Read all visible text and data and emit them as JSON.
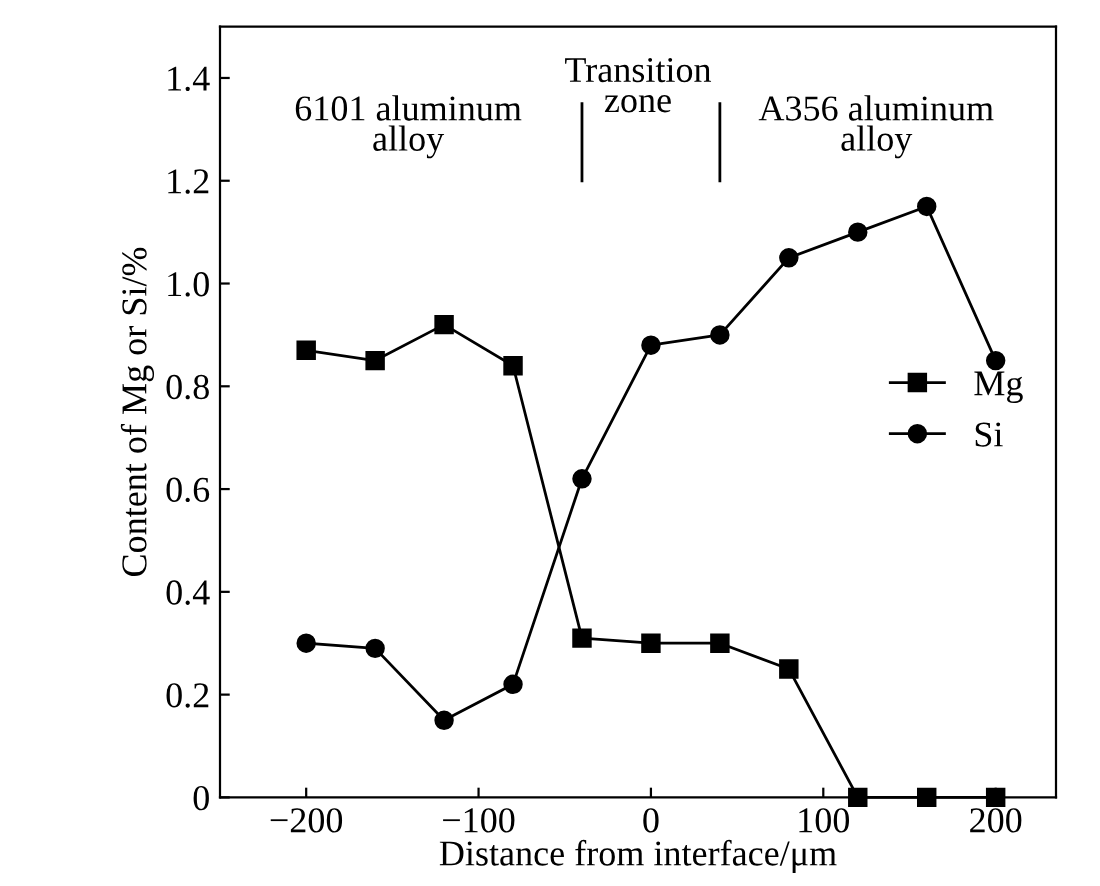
{
  "chart_data": {
    "type": "line",
    "xlabel": "Distance from interface/μm",
    "ylabel": "Content of Mg or Si/%",
    "x": [
      -200,
      -160,
      -120,
      -80,
      -40,
      0,
      40,
      80,
      120,
      160,
      200
    ],
    "series": [
      {
        "name": "Mg",
        "color": "#000000",
        "marker": "square",
        "values": [
          0.87,
          0.85,
          0.92,
          0.84,
          0.31,
          0.3,
          0.3,
          0.25,
          0.0,
          0.0,
          0.0
        ]
      },
      {
        "name": "Si",
        "color": "#000000",
        "marker": "circle",
        "values": [
          0.3,
          0.29,
          0.15,
          0.22,
          0.62,
          0.88,
          0.9,
          1.05,
          1.1,
          1.15,
          0.85
        ]
      }
    ],
    "xlim": [
      -250,
      235
    ],
    "ylim": [
      0,
      1.5
    ],
    "xticks": [
      {
        "value": -200,
        "label": "−200"
      },
      {
        "value": -100,
        "label": "−100"
      },
      0,
      100,
      200
    ],
    "yticks": [
      0,
      0.2,
      0.4,
      0.6,
      0.8,
      {
        "value": 1.0,
        "label": "1.0"
      },
      1.2,
      1.4
    ],
    "ref_lines": [
      {
        "axis": "x",
        "value": -40,
        "color": "#000000"
      },
      {
        "axis": "x",
        "value": 40,
        "color": "#000000"
      }
    ],
    "annotations": [
      "6101 aluminum\nalloy",
      "Transition\nzone",
      "A356 aluminum\nalloy"
    ],
    "legend": "center right",
    "grid": false,
    "line_style": "solid"
  }
}
